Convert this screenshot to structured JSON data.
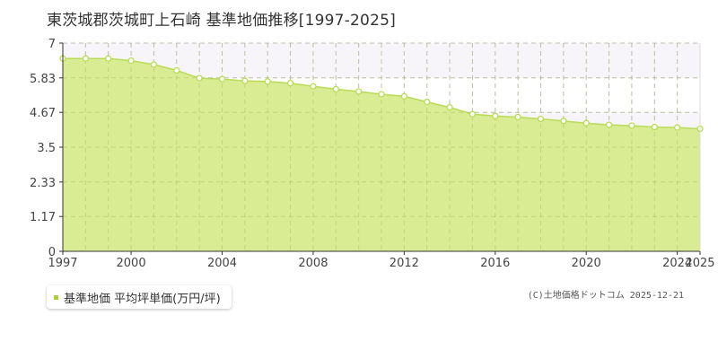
{
  "title": "東茨城郡茨城町上石崎 基準地価推移[1997-2025]",
  "legend": {
    "label": "基準地価 平均坪単価(万円/坪)"
  },
  "copyright": "(C)土地価格ドットコム 2025-12-21",
  "colors": {
    "fill": "#d9ec93",
    "line": "#b9dc56",
    "point_fill": "#ffffff",
    "legend_swatch": "#a8cf3a",
    "band": "#f7f5fa",
    "grid": "#d0d0d0"
  },
  "chart_data": {
    "type": "area",
    "title": "東茨城郡茨城町上石崎 基準地価推移[1997-2025]",
    "xlabel": "",
    "ylabel": "",
    "x": [
      1997,
      1998,
      1999,
      2000,
      2001,
      2002,
      2003,
      2004,
      2005,
      2006,
      2007,
      2008,
      2009,
      2010,
      2011,
      2012,
      2013,
      2014,
      2015,
      2016,
      2017,
      2018,
      2019,
      2020,
      2021,
      2022,
      2023,
      2024,
      2025
    ],
    "series": [
      {
        "name": "基準地価 平均坪単価(万円/坪)",
        "values": [
          6.48,
          6.48,
          6.48,
          6.41,
          6.28,
          6.08,
          5.82,
          5.79,
          5.73,
          5.71,
          5.65,
          5.55,
          5.45,
          5.37,
          5.28,
          5.21,
          5.02,
          4.84,
          4.61,
          4.55,
          4.51,
          4.45,
          4.38,
          4.31,
          4.25,
          4.22,
          4.18,
          4.16,
          4.12
        ]
      }
    ],
    "xticks": [
      "1997",
      "2000",
      "2004",
      "2008",
      "2012",
      "2016",
      "2020",
      "2024",
      "2025"
    ],
    "xtick_values": [
      1997,
      2000,
      2004,
      2008,
      2012,
      2016,
      2020,
      2024,
      2025
    ],
    "yticks": [
      "0",
      "1.17",
      "2.33",
      "3.5",
      "4.67",
      "5.83",
      "7"
    ],
    "ytick_values": [
      0,
      1.17,
      2.33,
      3.5,
      4.67,
      5.83,
      7
    ],
    "xlim": [
      1997,
      2025
    ],
    "ylim": [
      0,
      7
    ],
    "grid": true,
    "legend_position": "bottom-left"
  }
}
